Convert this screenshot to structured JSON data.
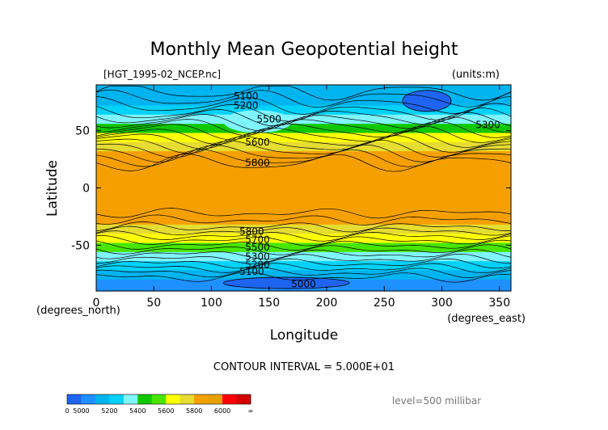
{
  "chart_data": {
    "type": "heatmap",
    "title": "Monthly Mean Geopotential height",
    "file_label": "[HGT_1995-02_NCEP.nc]",
    "units_label": "(units:m)",
    "xlabel": "Longitude",
    "ylabel": "Latitude",
    "x_unit_label": "(degrees_east)",
    "y_unit_label": "(degrees_north)",
    "xlim": [
      0,
      360
    ],
    "ylim": [
      -90,
      90
    ],
    "x_ticks": [
      0,
      50,
      100,
      150,
      200,
      250,
      300,
      350
    ],
    "y_ticks": [
      -50,
      0,
      50
    ],
    "contour_interval_text": "CONTOUR INTERVAL = 5.000E+01",
    "level_text": "level=500 millibar",
    "contour_interval": 50,
    "contour_labels": [
      {
        "value": "5100",
        "lon": 130,
        "lat": 80
      },
      {
        "value": "5200",
        "lon": 130,
        "lat": 72
      },
      {
        "value": "5300",
        "lon": 340,
        "lat": 55
      },
      {
        "value": "5500",
        "lon": 150,
        "lat": 60
      },
      {
        "value": "5600",
        "lon": 140,
        "lat": 40
      },
      {
        "value": "5800",
        "lon": 140,
        "lat": 22
      },
      {
        "value": "5800",
        "lon": 135,
        "lat": -38
      },
      {
        "value": "5700",
        "lon": 140,
        "lat": -45
      },
      {
        "value": "5500",
        "lon": 140,
        "lat": -52
      },
      {
        "value": "5300",
        "lon": 140,
        "lat": -60
      },
      {
        "value": "5200",
        "lon": 140,
        "lat": -67
      },
      {
        "value": "5100",
        "lon": 135,
        "lat": -73
      },
      {
        "value": "5000",
        "lon": 180,
        "lat": -84
      }
    ],
    "zonal_profile": [
      {
        "lat": 90,
        "value": 5080
      },
      {
        "lat": 80,
        "value": 5120
      },
      {
        "lat": 72,
        "value": 5230
      },
      {
        "lat": 64,
        "value": 5320
      },
      {
        "lat": 56,
        "value": 5430
      },
      {
        "lat": 48,
        "value": 5540
      },
      {
        "lat": 40,
        "value": 5660
      },
      {
        "lat": 32,
        "value": 5780
      },
      {
        "lat": 24,
        "value": 5840
      },
      {
        "lat": 0,
        "value": 5880
      },
      {
        "lat": -24,
        "value": 5860
      },
      {
        "lat": -32,
        "value": 5800
      },
      {
        "lat": -40,
        "value": 5700
      },
      {
        "lat": -48,
        "value": 5560
      },
      {
        "lat": -56,
        "value": 5440
      },
      {
        "lat": -64,
        "value": 5320
      },
      {
        "lat": -72,
        "value": 5180
      },
      {
        "lat": -80,
        "value": 5080
      },
      {
        "lat": -90,
        "value": 5040
      }
    ],
    "colorbar": {
      "labels": [
        "0",
        "5000",
        "5200",
        "5400",
        "5600",
        "5800",
        "6000",
        "∞"
      ],
      "bins": [
        {
          "from": 0,
          "to": 5000,
          "color": "#1e64f0"
        },
        {
          "from": 5000,
          "to": 5100,
          "color": "#1e90ff"
        },
        {
          "from": 5100,
          "to": 5200,
          "color": "#00b4f0"
        },
        {
          "from": 5200,
          "to": 5300,
          "color": "#00d2fa"
        },
        {
          "from": 5300,
          "to": 5400,
          "color": "#7ff5ff"
        },
        {
          "from": 5400,
          "to": 5500,
          "color": "#10c800"
        },
        {
          "from": 5500,
          "to": 5600,
          "color": "#48e600"
        },
        {
          "from": 5600,
          "to": 5700,
          "color": "#ffff00"
        },
        {
          "from": 5700,
          "to": 5800,
          "color": "#e6dc32"
        },
        {
          "from": 5800,
          "to": 5900,
          "color": "#f5a000"
        },
        {
          "from": 5900,
          "to": 6000,
          "color": "#e6a000"
        },
        {
          "from": 6000,
          "to": 6100,
          "color": "#ff0000"
        },
        {
          "from": 6100,
          "to": null,
          "color": "#d20000"
        }
      ]
    }
  }
}
